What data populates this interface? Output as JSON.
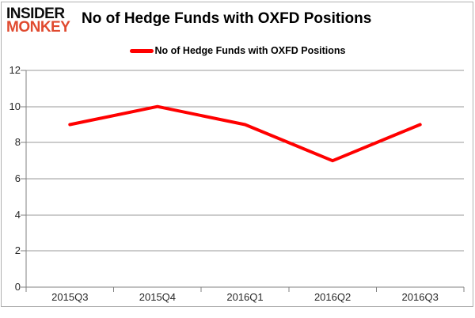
{
  "logo": {
    "line1": "INSIDER",
    "line2": "MONKEY"
  },
  "header": {
    "title": "No of Hedge Funds with OXFD Positions"
  },
  "legend": {
    "label": "No of Hedge Funds with OXFD Positions"
  },
  "chart_data": {
    "type": "line",
    "title": "No of Hedge Funds with OXFD Positions",
    "categories": [
      "2015Q3",
      "2015Q4",
      "2016Q1",
      "2016Q2",
      "2016Q3"
    ],
    "series": [
      {
        "name": "No of Hedge Funds with OXFD Positions",
        "values": [
          9,
          10,
          9,
          7,
          9
        ]
      }
    ],
    "yticks": [
      0,
      2,
      4,
      6,
      8,
      10,
      12
    ],
    "ylim": [
      0,
      12
    ],
    "grid": true,
    "legend_position": "top",
    "colors": {
      "line": "#ff0000",
      "grid": "#999999",
      "axis": "#808080",
      "tick_text": "#262626",
      "logo_red": "#e04a2f",
      "border": "#b0b0b0"
    }
  }
}
